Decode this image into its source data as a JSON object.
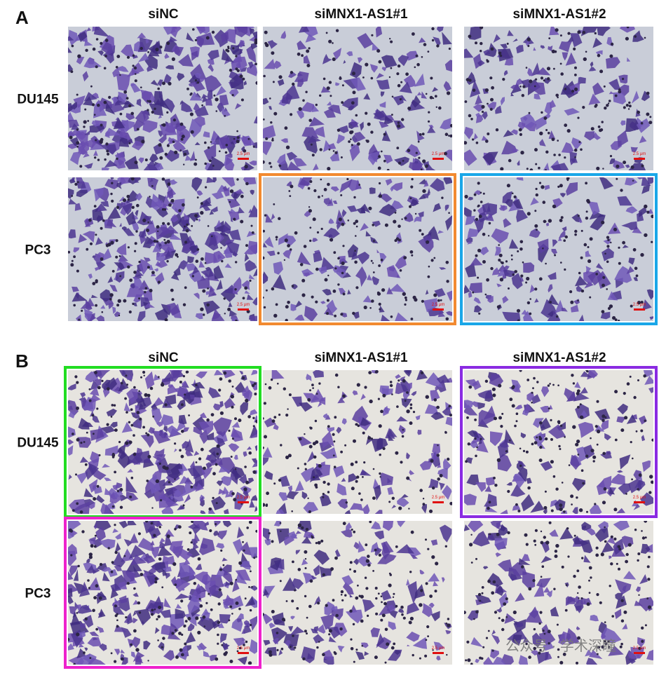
{
  "figure": {
    "panels": [
      {
        "label": "A",
        "columns": [
          "siNC",
          "siMNX1-AS1#1",
          "siMNX1-AS1#2"
        ],
        "rows": [
          "DU145",
          "PC3"
        ],
        "frames": [
          [
            null,
            null,
            null
          ],
          [
            null,
            "#f28a30",
            "#1aa7e8"
          ]
        ],
        "background": "#c9cdd8"
      },
      {
        "label": "B",
        "columns": [
          "siNC",
          "siMNX1-AS1#1",
          "siMNX1-AS1#2"
        ],
        "rows": [
          "DU145",
          "PC3"
        ],
        "frames": [
          [
            "#22dd22",
            null,
            "#8a2be2"
          ],
          [
            "#ee22cc",
            null,
            null
          ]
        ],
        "background": "#e6e4df"
      }
    ],
    "scale_bar": "2.5 μm",
    "watermark": "公众号 · 学术深瞳"
  }
}
